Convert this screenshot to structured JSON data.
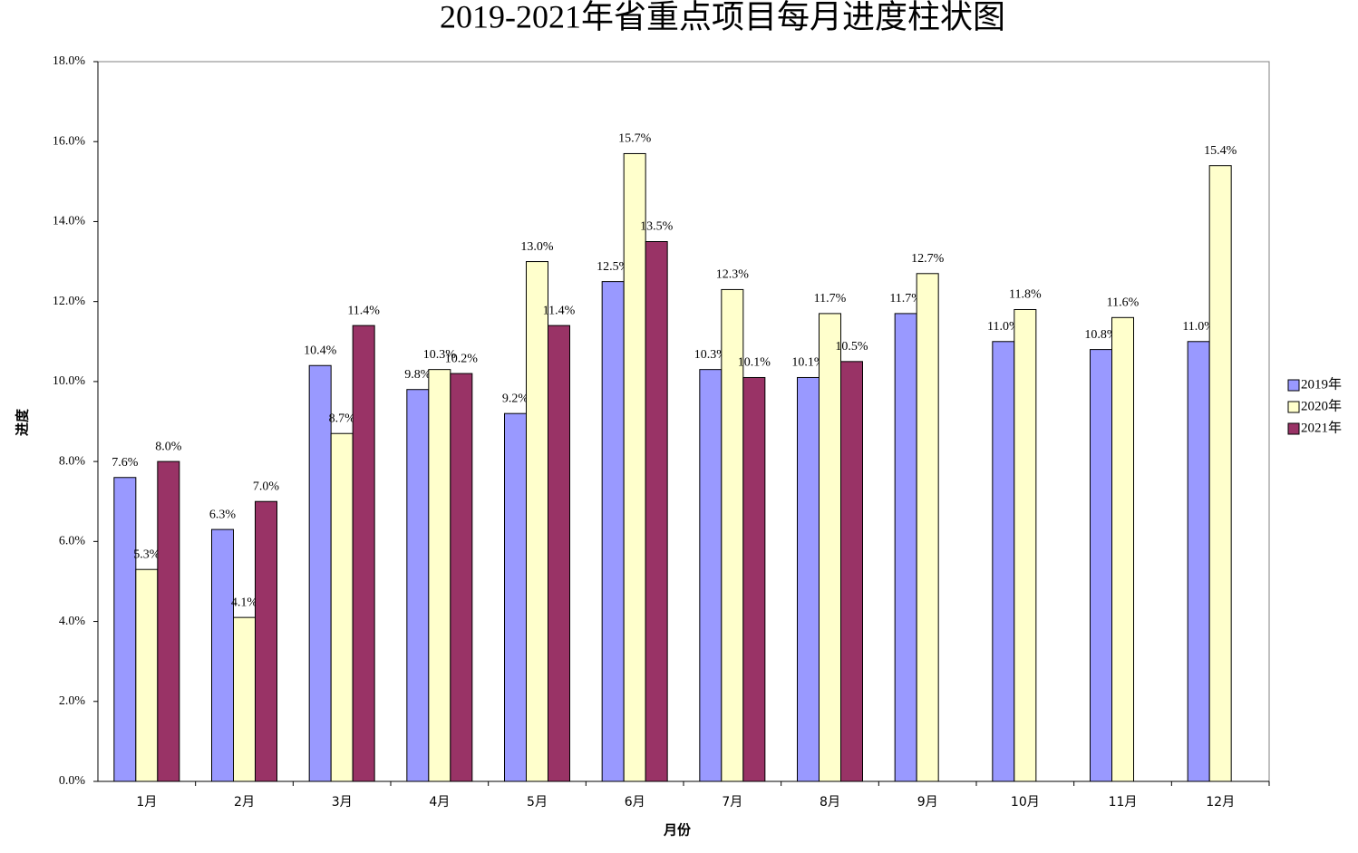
{
  "chart_data": {
    "type": "bar",
    "title": "2019-2021年省重点项目每月进度柱状图",
    "x_label": "月份",
    "y_label": "进度",
    "categories": [
      "1月",
      "2月",
      "3月",
      "4月",
      "5月",
      "6月",
      "7月",
      "8月",
      "9月",
      "10月",
      "11月",
      "12月"
    ],
    "series": [
      {
        "name": "2019年",
        "color": "#9999ff",
        "values": [
          7.6,
          6.3,
          10.4,
          9.8,
          9.2,
          12.5,
          10.3,
          10.1,
          11.7,
          11.0,
          10.8,
          11.0
        ],
        "value_labels": [
          "7.6%",
          "6.3%",
          "10.4%",
          "9.8%",
          "9.2%",
          "12.5%",
          "10.3%",
          "10.1%",
          "11.7%",
          "11.0%",
          "10.8%",
          "11.0%"
        ]
      },
      {
        "name": "2020年",
        "color": "#ffffcc",
        "values": [
          5.3,
          4.1,
          8.7,
          10.3,
          13.0,
          15.7,
          12.3,
          11.7,
          12.7,
          11.8,
          11.6,
          15.4
        ],
        "value_labels": [
          "5.3%",
          "4.1%",
          "8.7%",
          "10.3%",
          "13.0%",
          "15.7%",
          "12.3%",
          "11.7%",
          "12.7%",
          "11.8%",
          "11.6%",
          "15.4%"
        ]
      },
      {
        "name": "2021年",
        "color": "#993366",
        "values": [
          8.0,
          7.0,
          11.4,
          10.2,
          11.4,
          13.5,
          10.1,
          10.5,
          null,
          null,
          null,
          null
        ],
        "value_labels": [
          "8.0%",
          "7.0%",
          "11.4%",
          "10.2%",
          "11.4%",
          "13.5%",
          "10.1%",
          "10.5%",
          null,
          null,
          null,
          null
        ]
      }
    ],
    "ylim": [
      0,
      18
    ],
    "yticks": [
      {
        "value": 0,
        "label": "0.0%"
      },
      {
        "value": 2,
        "label": "2.0%"
      },
      {
        "value": 4,
        "label": "4.0%"
      },
      {
        "value": 6,
        "label": "6.0%"
      },
      {
        "value": 8,
        "label": "8.0%"
      },
      {
        "value": 10,
        "label": "10.0%"
      },
      {
        "value": 12,
        "label": "12.0%"
      },
      {
        "value": 14,
        "label": "14.0%"
      },
      {
        "value": 16,
        "label": "16.0%"
      },
      {
        "value": 18,
        "label": "18.0%"
      }
    ],
    "grid": false,
    "legend": "right"
  }
}
